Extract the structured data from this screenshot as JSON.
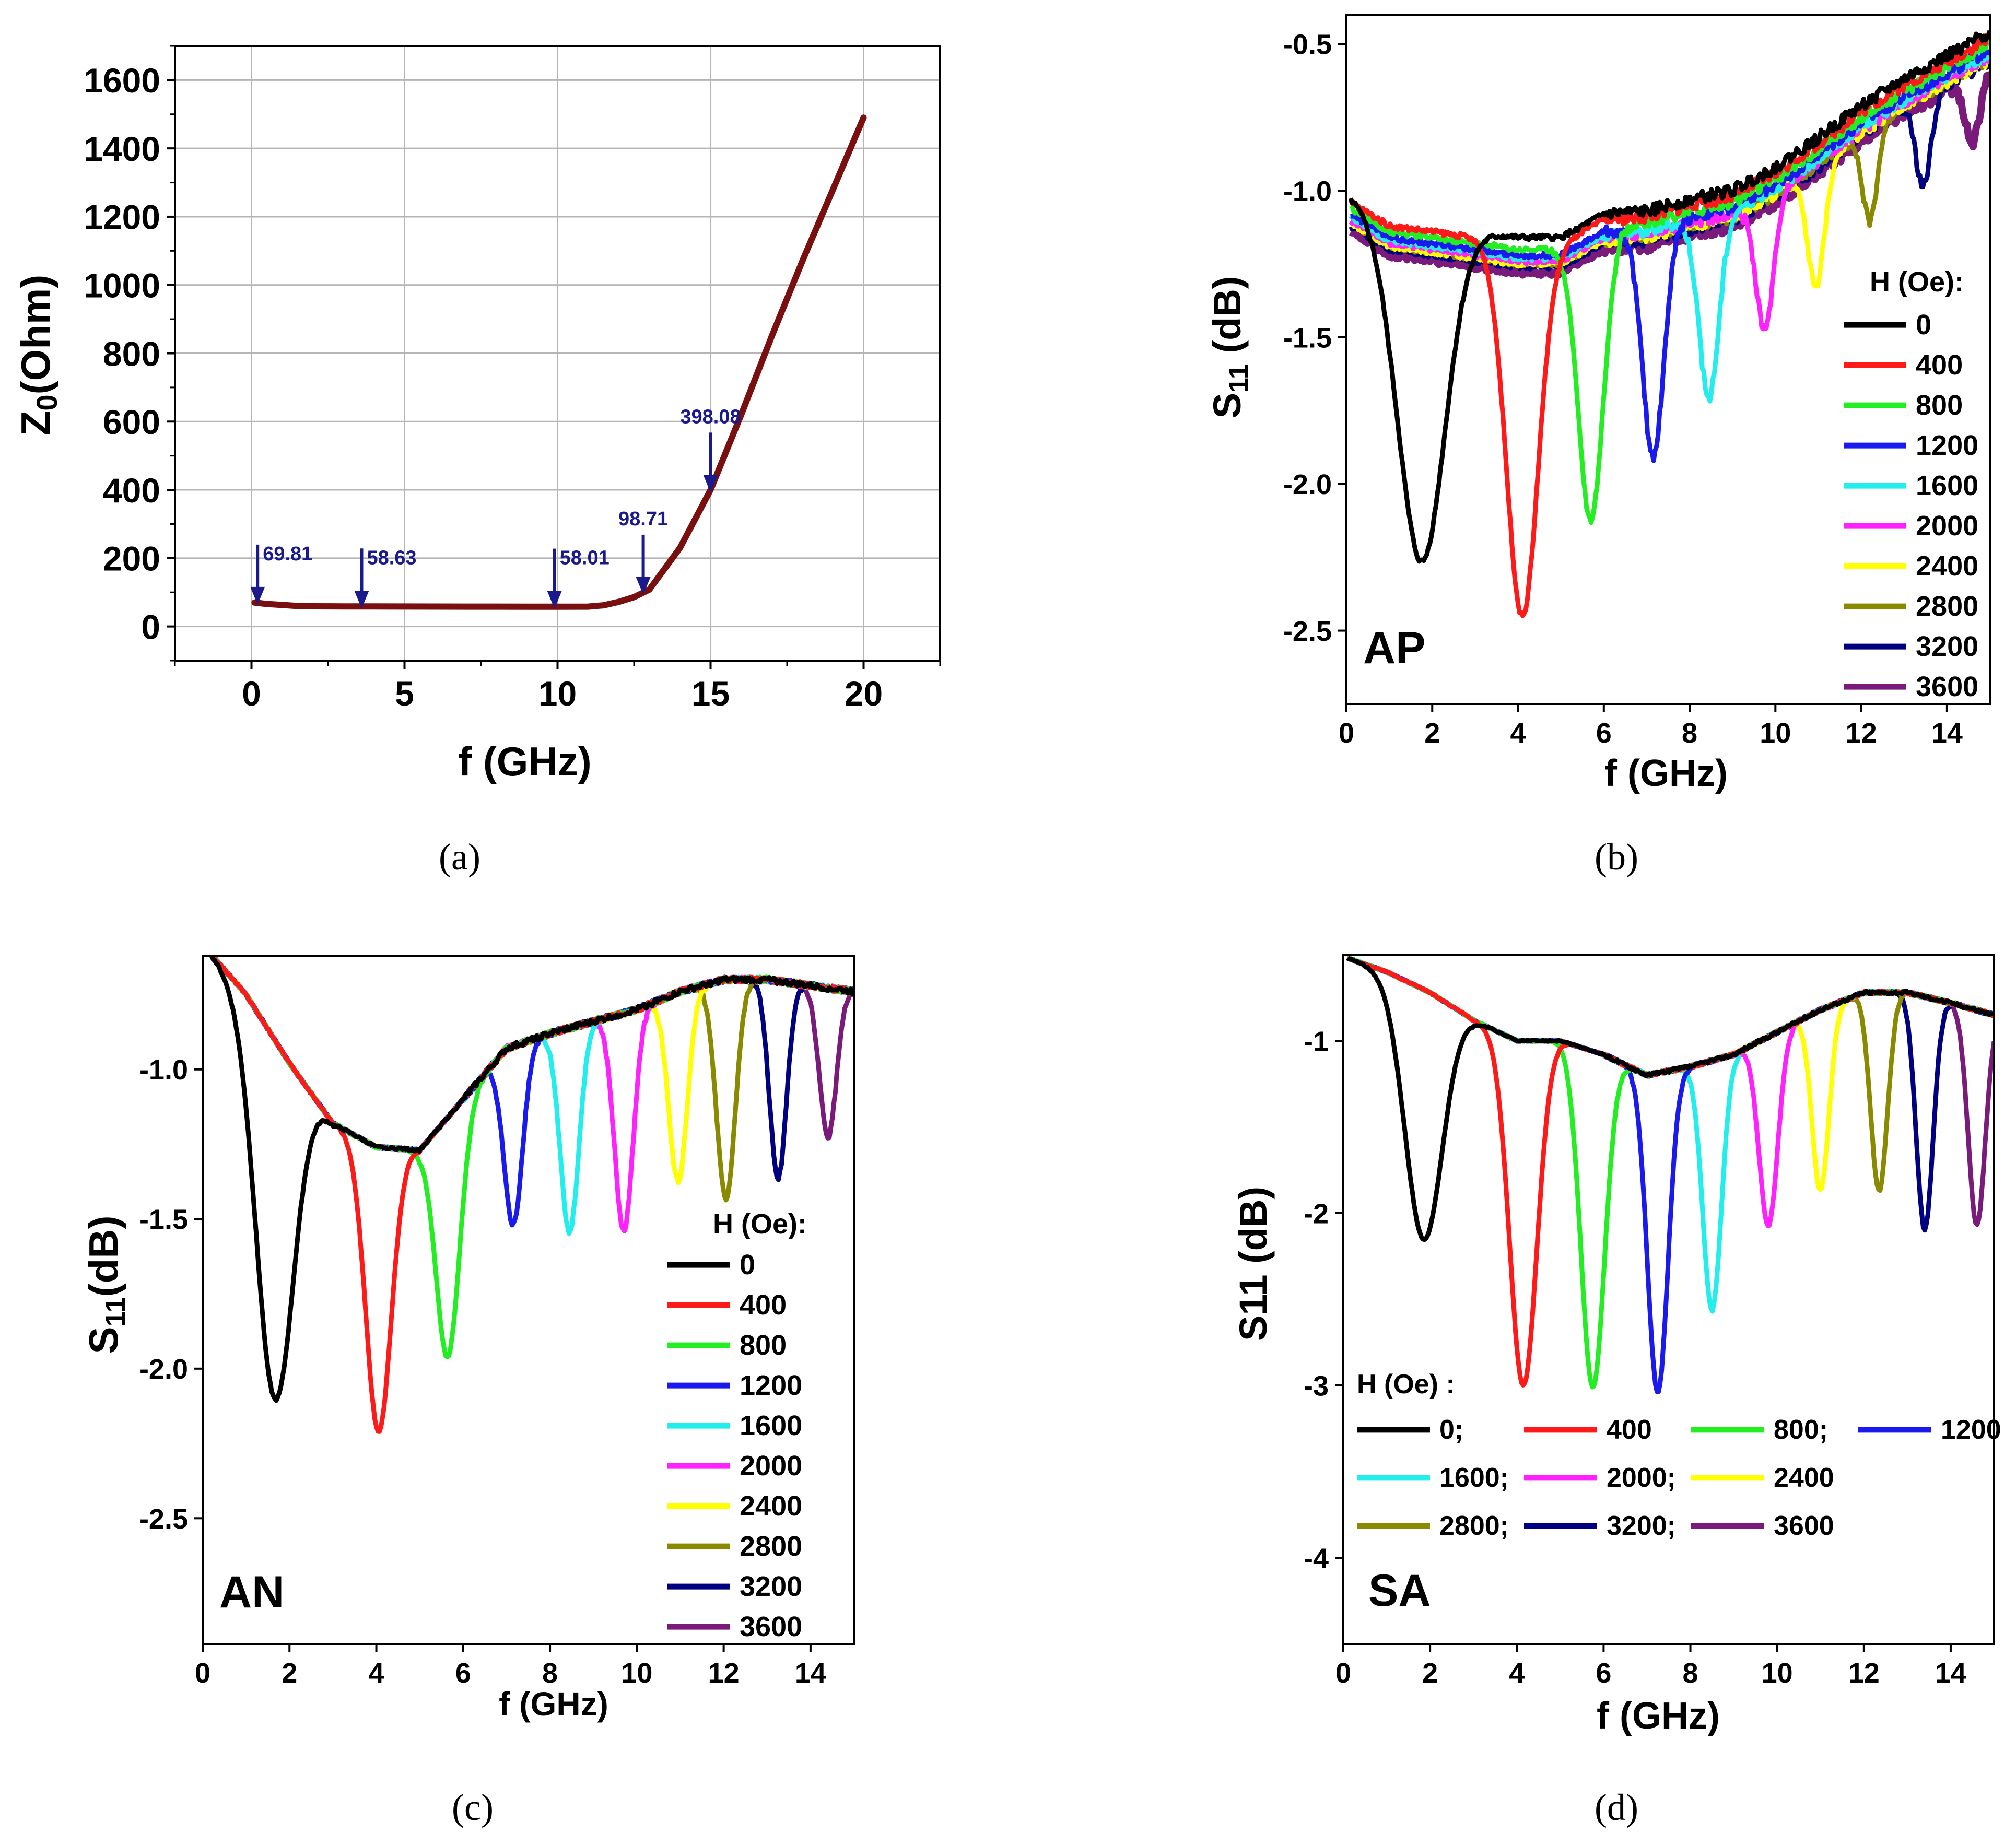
{
  "colors": {
    "h0": "#000000",
    "h400": "#ff1a1a",
    "h800": "#22ee22",
    "h1200": "#1a1aee",
    "h1600": "#22eeee",
    "h2000": "#ff22ff",
    "h2400": "#ffff00",
    "h2800": "#8a8a00",
    "h3200": "#000080",
    "h3600": "#7a1a7a",
    "z0_line": "#7a0f0f",
    "arrow": "#1a1a8c",
    "grid": "#b5b5b5"
  },
  "captions": {
    "a": "(a)",
    "b": "(b)",
    "c": "(c)",
    "d": "(d)"
  },
  "chart_data": [
    {
      "id": "a",
      "type": "line",
      "title": "",
      "xlabel": "f (GHz)",
      "ylabel_main": "Z",
      "ylabel_sub": "0",
      "ylabel_rest": "(Ohm)",
      "xlim": [
        -2.5,
        22.5
      ],
      "ylim": [
        -100,
        1700
      ],
      "xticks": [
        0,
        5,
        10,
        15,
        20
      ],
      "yticks": [
        0,
        200,
        400,
        600,
        800,
        1000,
        1200,
        1400,
        1600
      ],
      "grid": true,
      "series": [
        {
          "name": "Z0",
          "x": [
            0.1,
            0.5,
            1,
            1.5,
            2,
            3,
            4,
            5,
            6,
            7,
            8,
            9,
            10,
            11,
            11.5,
            12,
            12.5,
            13,
            14,
            15,
            16,
            17,
            18,
            19,
            20
          ],
          "y": [
            70,
            66,
            63,
            60,
            59,
            58.8,
            58.6,
            58.4,
            58.3,
            58.2,
            58.1,
            58.05,
            58,
            58.2,
            62,
            72,
            86,
            108,
            230,
            400,
            620,
            850,
            1070,
            1280,
            1490
          ]
        }
      ],
      "annotations": [
        {
          "x": 0.2,
          "y": 70,
          "label": "69.81"
        },
        {
          "x": 3.6,
          "y": 58.6,
          "label": "58.63"
        },
        {
          "x": 9.9,
          "y": 58,
          "label": "58.01"
        },
        {
          "x": 12.8,
          "y": 99,
          "label": "98.71"
        },
        {
          "x": 15,
          "y": 398,
          "label": "398.08"
        }
      ]
    },
    {
      "id": "b",
      "type": "line",
      "panel_label": "AP",
      "xlabel": "f (GHz)",
      "ylabel_main": "S",
      "ylabel_sub": "11",
      "ylabel_rest": " (dB)",
      "xlim": [
        0,
        15
      ],
      "ylim": [
        -2.75,
        -0.4
      ],
      "xticks": [
        0,
        2,
        4,
        6,
        8,
        10,
        12,
        14
      ],
      "yticks": [
        -2.5,
        -2.0,
        -1.5,
        -1.0,
        -0.5
      ],
      "ytick_labels": [
        "-2.5",
        "-2.0",
        "-1.5",
        "-1.0",
        "-0.5"
      ],
      "legend_title": "H (Oe):",
      "legend_layout": "column",
      "legend_labels": [
        "0",
        "400",
        "800",
        "1200",
        "1600",
        "2000",
        "2400",
        "2800",
        "3200",
        "3600"
      ],
      "base": {
        "x": [
          0.1,
          1,
          2,
          3,
          4,
          5,
          6,
          7,
          8,
          9,
          10,
          11,
          12,
          13,
          14,
          15
        ],
        "y": [
          -1.06,
          -1.14,
          -1.16,
          -1.18,
          -1.2,
          -1.2,
          -1.12,
          -1.11,
          -1.07,
          -1.04,
          -0.96,
          -0.86,
          -0.75,
          -0.66,
          -0.58,
          -0.5
        ]
      },
      "dips": [
        {
          "f": 1.75,
          "depth": 1.15,
          "width": 1.4
        },
        {
          "f": 4.1,
          "depth": 1.27,
          "width": 0.95
        },
        {
          "f": 5.7,
          "depth": 0.98,
          "width": 0.75
        },
        {
          "f": 7.15,
          "depth": 0.78,
          "width": 0.65
        },
        {
          "f": 8.45,
          "depth": 0.62,
          "width": 0.6
        },
        {
          "f": 9.75,
          "depth": 0.45,
          "width": 0.55
        },
        {
          "f": 10.95,
          "depth": 0.42,
          "width": 0.5
        },
        {
          "f": 12.2,
          "depth": 0.32,
          "width": 0.45
        },
        {
          "f": 13.45,
          "depth": 0.3,
          "width": 0.45
        },
        {
          "f": 14.6,
          "depth": 0.22,
          "width": 0.45
        }
      ],
      "shifts": [
        0.04,
        0.02,
        0.0,
        -0.02,
        -0.03,
        -0.04,
        -0.05,
        -0.05,
        -0.06,
        -0.08
      ]
    },
    {
      "id": "c",
      "type": "line",
      "panel_label": "AN",
      "xlabel": "f (GHz)",
      "ylabel_main": "S",
      "ylabel_sub": "11",
      "ylabel_rest": "(dB)",
      "xlim": [
        0,
        15
      ],
      "ylim": [
        -2.92,
        -0.62
      ],
      "xticks": [
        0,
        2,
        4,
        6,
        8,
        10,
        12,
        14
      ],
      "yticks": [
        -2.5,
        -2.0,
        -1.5,
        -1.0
      ],
      "ytick_labels": [
        "-2.5",
        "-2.0",
        "-1.5",
        "-1.0"
      ],
      "legend_title": "H (Oe):",
      "legend_layout": "column",
      "legend_labels": [
        "0",
        "400",
        "800",
        "1200",
        "1600",
        "2000",
        "2400",
        "2800",
        "3200",
        "3600"
      ],
      "base": {
        "x": [
          0.1,
          1,
          2,
          3,
          4,
          5,
          6,
          7,
          8,
          9,
          10,
          11,
          12,
          13,
          14,
          15
        ],
        "y": [
          -0.6,
          -0.75,
          -0.98,
          -1.18,
          -1.26,
          -1.27,
          -1.1,
          -0.93,
          -0.88,
          -0.84,
          -0.8,
          -0.74,
          -0.7,
          -0.7,
          -0.72,
          -0.74
        ]
      },
      "dips": [
        {
          "f": 1.65,
          "depth": 1.2,
          "width": 1.1
        },
        {
          "f": 4.05,
          "depth": 0.95,
          "width": 0.75
        },
        {
          "f": 5.65,
          "depth": 0.8,
          "width": 0.7
        },
        {
          "f": 7.15,
          "depth": 0.6,
          "width": 0.55
        },
        {
          "f": 8.45,
          "depth": 0.68,
          "width": 0.55
        },
        {
          "f": 9.7,
          "depth": 0.73,
          "width": 0.55
        },
        {
          "f": 10.95,
          "depth": 0.63,
          "width": 0.55
        },
        {
          "f": 12.05,
          "depth": 0.73,
          "width": 0.55
        },
        {
          "f": 13.25,
          "depth": 0.66,
          "width": 0.5
        },
        {
          "f": 14.4,
          "depth": 0.5,
          "width": 0.5
        }
      ],
      "shifts": [
        0.0,
        0.0,
        0.0,
        0.0,
        0.0,
        0.0,
        0.0,
        0.0,
        0.0,
        0.0
      ]
    },
    {
      "id": "d",
      "type": "line",
      "panel_label": "SA",
      "xlabel": "f (GHz)",
      "ylabel_main": "S11 (dB)",
      "ylabel_sub": "",
      "ylabel_rest": "",
      "xlim": [
        0,
        15
      ],
      "ylim": [
        -4.5,
        -0.5
      ],
      "xticks": [
        0,
        2,
        4,
        6,
        8,
        10,
        12,
        14
      ],
      "yticks": [
        -4,
        -3,
        -2,
        -1
      ],
      "ytick_labels": [
        "-4",
        "-3",
        "-2",
        "-1"
      ],
      "legend_title": "H (Oe) :",
      "legend_layout": "grid",
      "legend_labels": [
        "0;",
        "400",
        "800;",
        "1200",
        "1600;",
        "2000;",
        "2400",
        "2800;",
        "3200;",
        "3600"
      ],
      "base": {
        "x": [
          0.1,
          1,
          2,
          3,
          4,
          5,
          6,
          7,
          8,
          9,
          10,
          11,
          12,
          13,
          14,
          15
        ],
        "y": [
          -0.52,
          -0.6,
          -0.72,
          -0.88,
          -1.0,
          -1.0,
          -1.08,
          -1.2,
          -1.15,
          -1.08,
          -0.95,
          -0.82,
          -0.72,
          -0.72,
          -0.78,
          -0.85
        ]
      },
      "dips": [
        {
          "f": 1.85,
          "depth": 1.45,
          "width": 1.1
        },
        {
          "f": 4.15,
          "depth": 2.0,
          "width": 0.8
        },
        {
          "f": 5.75,
          "depth": 1.95,
          "width": 0.7
        },
        {
          "f": 7.25,
          "depth": 1.85,
          "width": 0.6
        },
        {
          "f": 8.5,
          "depth": 1.45,
          "width": 0.55
        },
        {
          "f": 9.8,
          "depth": 1.1,
          "width": 0.55
        },
        {
          "f": 11.0,
          "depth": 1.05,
          "width": 0.5
        },
        {
          "f": 12.35,
          "depth": 1.15,
          "width": 0.5
        },
        {
          "f": 13.4,
          "depth": 1.35,
          "width": 0.5
        },
        {
          "f": 14.6,
          "depth": 1.25,
          "width": 0.5
        }
      ],
      "shifts": [
        0.0,
        0.0,
        0.0,
        0.0,
        0.0,
        0.0,
        0.0,
        0.0,
        0.0,
        0.0
      ]
    }
  ]
}
